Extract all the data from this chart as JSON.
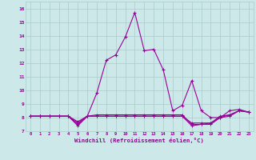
{
  "xlabel": "Windchill (Refroidissement éolien,°C)",
  "hours": [
    0,
    1,
    2,
    3,
    4,
    5,
    6,
    7,
    8,
    9,
    10,
    11,
    12,
    13,
    14,
    15,
    16,
    17,
    18,
    19,
    20,
    21,
    22,
    23
  ],
  "temp_series": [
    8.1,
    8.1,
    8.1,
    8.1,
    8.1,
    7.5,
    8.1,
    9.8,
    12.2,
    12.6,
    13.9,
    15.7,
    12.9,
    13.0,
    11.5,
    8.5,
    8.9,
    10.7,
    8.5,
    8.0,
    8.0,
    8.5,
    8.6,
    8.4
  ],
  "windchill_series": [
    8.1,
    8.1,
    8.1,
    8.1,
    8.1,
    7.4,
    8.1,
    8.1,
    8.1,
    8.1,
    8.1,
    8.1,
    8.1,
    8.1,
    8.1,
    8.1,
    8.1,
    7.4,
    7.5,
    7.5,
    8.0,
    8.1,
    8.5,
    8.4
  ],
  "extra_series1": [
    8.1,
    8.1,
    8.1,
    8.1,
    8.1,
    7.6,
    8.1,
    8.1,
    8.1,
    8.1,
    8.1,
    8.1,
    8.1,
    8.1,
    8.1,
    8.1,
    8.1,
    7.6,
    7.6,
    7.6,
    8.0,
    8.2,
    8.5,
    8.4
  ],
  "extra_series2": [
    8.1,
    8.1,
    8.1,
    8.1,
    8.1,
    7.7,
    8.1,
    8.2,
    8.2,
    8.2,
    8.2,
    8.2,
    8.2,
    8.2,
    8.2,
    8.2,
    8.2,
    7.5,
    7.5,
    7.6,
    8.1,
    8.2,
    8.5,
    8.4
  ],
  "line_color": "#990099",
  "bg_color": "#cce8e8",
  "grid_color": "#aacccc",
  "ylim": [
    7.0,
    16.5
  ],
  "yticks": [
    7,
    8,
    9,
    10,
    11,
    12,
    13,
    14,
    15,
    16
  ],
  "xticks": [
    0,
    1,
    2,
    3,
    4,
    5,
    6,
    7,
    8,
    9,
    10,
    11,
    12,
    13,
    14,
    15,
    16,
    17,
    18,
    19,
    20,
    21,
    22,
    23
  ]
}
